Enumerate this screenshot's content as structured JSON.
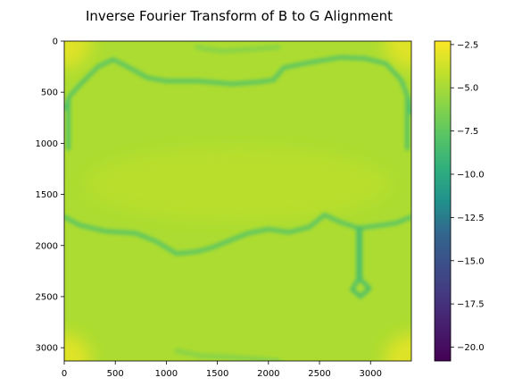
{
  "chart_data": {
    "type": "heatmap",
    "title": "Inverse Fourier Transform of B to G Alignment",
    "xlabel": "",
    "ylabel": "",
    "xlim": [
      0,
      3400
    ],
    "ylim": [
      3130,
      0
    ],
    "x_ticks": [
      0,
      500,
      1000,
      1500,
      2000,
      2500,
      3000
    ],
    "y_ticks": [
      0,
      500,
      1000,
      1500,
      2000,
      2500,
      3000
    ],
    "colormap": "viridis",
    "colorbar": {
      "vmin": -20.8,
      "vmax": -2.3,
      "ticks": [
        -2.5,
        -5.0,
        -7.5,
        -10.0,
        -12.5,
        -15.0,
        -17.5,
        -20.0
      ],
      "tick_labels": [
        "−2.5",
        "−5.0",
        "−7.5",
        "−10.0",
        "−12.5",
        "−15.0",
        "−17.5",
        "−20.0"
      ]
    },
    "background_level": -4.8,
    "corner_level": -3.2,
    "features": [
      {
        "name": "upper-band",
        "level": -7.8,
        "path": [
          [
            0,
            660
          ],
          [
            60,
            530
          ],
          [
            180,
            400
          ],
          [
            330,
            250
          ],
          [
            480,
            180
          ],
          [
            620,
            250
          ],
          [
            820,
            360
          ],
          [
            1000,
            390
          ],
          [
            1300,
            390
          ],
          [
            1650,
            420
          ],
          [
            1900,
            400
          ],
          [
            2050,
            380
          ],
          [
            2150,
            260
          ],
          [
            2400,
            210
          ],
          [
            2700,
            160
          ],
          [
            2950,
            170
          ],
          [
            3150,
            220
          ],
          [
            3300,
            380
          ],
          [
            3370,
            560
          ],
          [
            3400,
            700
          ]
        ]
      },
      {
        "name": "left-edge",
        "level": -8.0,
        "path": [
          [
            40,
            560
          ],
          [
            40,
            1050
          ]
        ]
      },
      {
        "name": "right-edge",
        "level": -8.0,
        "path": [
          [
            3360,
            560
          ],
          [
            3360,
            1050
          ]
        ]
      },
      {
        "name": "middle-band",
        "level": -7.8,
        "path": [
          [
            0,
            1720
          ],
          [
            150,
            1800
          ],
          [
            400,
            1860
          ],
          [
            700,
            1880
          ],
          [
            900,
            1960
          ],
          [
            1100,
            2080
          ],
          [
            1300,
            2060
          ],
          [
            1450,
            2020
          ],
          [
            1600,
            1960
          ],
          [
            1800,
            1880
          ],
          [
            2000,
            1840
          ],
          [
            2200,
            1870
          ],
          [
            2400,
            1820
          ],
          [
            2550,
            1700
          ],
          [
            2700,
            1770
          ],
          [
            2880,
            1830
          ],
          [
            3050,
            1810
          ],
          [
            3250,
            1780
          ],
          [
            3400,
            1720
          ]
        ]
      },
      {
        "name": "drop-loop",
        "level": -8.2,
        "path": [
          [
            2880,
            1830
          ],
          [
            2880,
            2150
          ],
          [
            2880,
            2330
          ],
          [
            2820,
            2430
          ],
          [
            2900,
            2500
          ],
          [
            2990,
            2420
          ],
          [
            2900,
            2330
          ],
          [
            2900,
            2150
          ],
          [
            2900,
            1830
          ]
        ]
      },
      {
        "name": "top-texture",
        "level": -6.4,
        "path": [
          [
            1300,
            60
          ],
          [
            1550,
            100
          ],
          [
            1800,
            80
          ],
          [
            2100,
            60
          ]
        ]
      },
      {
        "name": "bottom-texture",
        "level": -6.4,
        "path": [
          [
            1100,
            3030
          ],
          [
            1350,
            3080
          ],
          [
            1600,
            3090
          ],
          [
            1900,
            3110
          ],
          [
            2100,
            3130
          ]
        ]
      }
    ]
  }
}
